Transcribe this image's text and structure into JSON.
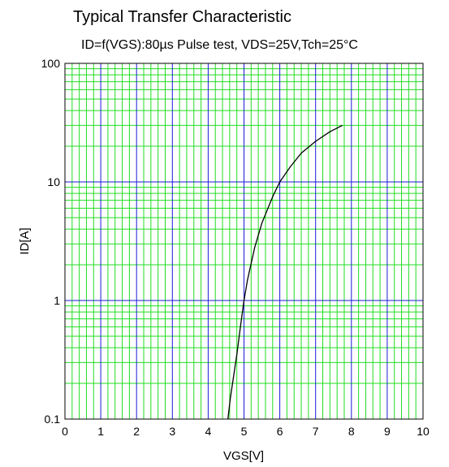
{
  "chart_data": {
    "type": "line",
    "title": "Typical Transfer Characteristic",
    "subtitle": "ID=f(VGS):80µs Pulse test, VDS=25V,Tch=25°C",
    "xlabel": "VGS[V]",
    "ylabel": "ID[A]",
    "xlim": [
      0,
      10
    ],
    "ylim": [
      0.1,
      100
    ],
    "y_scale": "log",
    "grid": true,
    "grid_colors": {
      "minor": "#22dd22",
      "major": "#1a1ad8"
    },
    "line_color": "#000000",
    "x_ticks": [
      "0",
      "1",
      "2",
      "3",
      "4",
      "5",
      "6",
      "7",
      "8",
      "9",
      "10"
    ],
    "y_ticks": [
      "0.1",
      "1",
      "10",
      "100"
    ],
    "series": [
      {
        "x": [
          4.55,
          4.62,
          4.7,
          4.8,
          4.9,
          5.0,
          5.1,
          5.3,
          5.5,
          5.8,
          6.0,
          6.3,
          6.6,
          7.0,
          7.4,
          7.75
        ],
        "y": [
          0.1,
          0.15,
          0.22,
          0.35,
          0.6,
          1.0,
          1.5,
          2.8,
          4.5,
          7.5,
          10.0,
          13.5,
          17.5,
          22.0,
          26.5,
          30.0
        ]
      }
    ]
  }
}
